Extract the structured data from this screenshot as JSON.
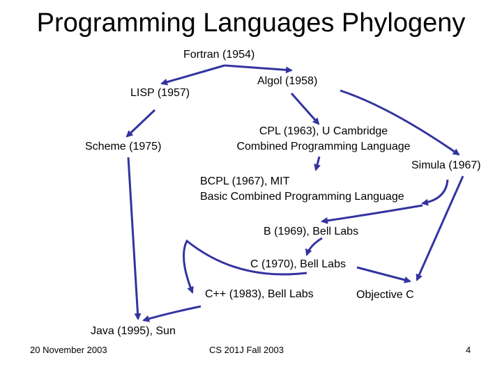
{
  "slide": {
    "title": "Programming Languages Phylogeny",
    "arrow_color": "#3333a0"
  },
  "nodes": {
    "fortran": "Fortran (1954)",
    "lisp": "LISP (1957)",
    "algol": "Algol (1958)",
    "scheme": "Scheme (1975)",
    "cpl": [
      "CPL (1963), U Cambridge",
      "Combined Programming Language"
    ],
    "simula": "Simula (1967)",
    "bcpl": [
      "BCPL (1967), MIT",
      "Basic Combined Programming Language"
    ],
    "b": "B (1969), Bell Labs",
    "c": "C (1970), Bell Labs",
    "cpp": "C++ (1983), Bell Labs",
    "objc": "Objective C",
    "java": "Java (1995), Sun"
  },
  "footer": {
    "date": "20 November 2003",
    "course": "CS 201J Fall 2003",
    "page": "4"
  }
}
